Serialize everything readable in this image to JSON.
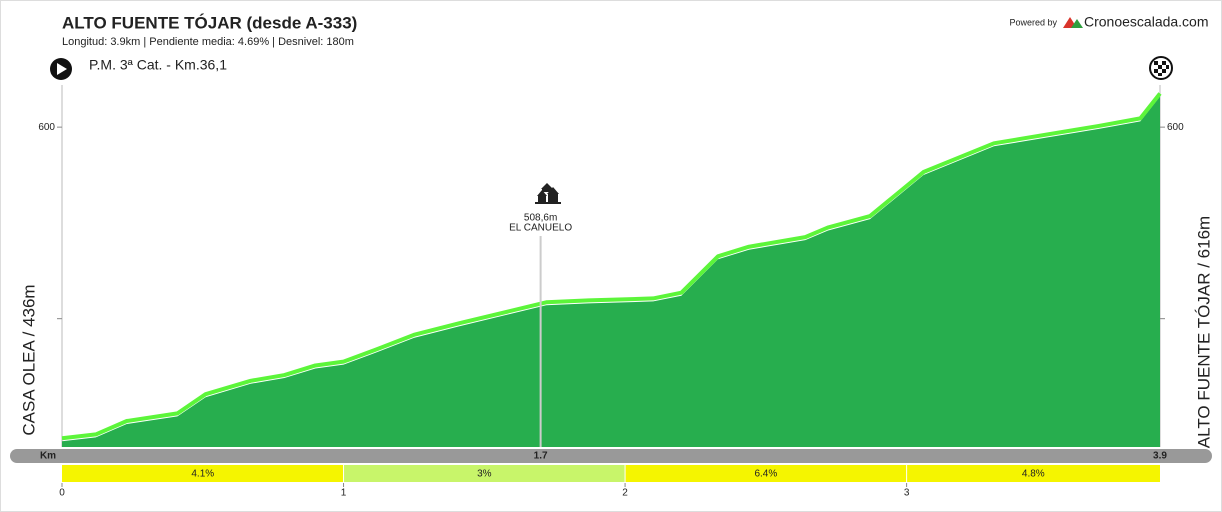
{
  "chart_data": {
    "type": "area",
    "title": "ALTO FUENTE TÓJAR  (desde A-333)",
    "subtitle": "Longitud: 3.9km | Pendiente media: 4.69% | Desnivel: 180m",
    "category_label": "P.M. 3ª Cat. - Km.36,1",
    "powered_by": "Powered by",
    "brand": "Cronoescalada.com",
    "start_label": "CASA OLEA / 436m",
    "end_label": "ALTO FUENTE TÓJAR / 616m",
    "x": [
      0,
      0.12,
      0.23,
      0.41,
      0.51,
      0.67,
      0.79,
      0.9,
      1.0,
      1.11,
      1.25,
      1.41,
      1.72,
      1.87,
      2.1,
      2.2,
      2.33,
      2.44,
      2.64,
      2.72,
      2.87,
      3.06,
      3.31,
      3.68,
      3.83,
      3.9
    ],
    "values": [
      436,
      438,
      445,
      449,
      459,
      466,
      469,
      474,
      476,
      482,
      490,
      496,
      507,
      508,
      509,
      512,
      531,
      536,
      541,
      546,
      552,
      575,
      590,
      599,
      603,
      616
    ],
    "fill_color": "#27ae4e",
    "line_color": "#5cf53a",
    "xlim": [
      0,
      3.9
    ],
    "ylim": [
      433,
      622
    ],
    "xticks": [
      0,
      1,
      2,
      3
    ],
    "yticks": [
      600
    ],
    "minor_yticks": [
      500
    ],
    "annotation": {
      "x": 1.7,
      "value": 508.6,
      "label": "508,6m",
      "name": "EL CANUELO"
    },
    "km_label": "Km",
    "km_marks": [
      1.7,
      3.9
    ],
    "segments": [
      {
        "start": 0,
        "end": 1,
        "value": 4.1,
        "label": "4.1%",
        "color": "#f5f500"
      },
      {
        "start": 1,
        "end": 2,
        "value": 3,
        "label": "3%",
        "color": "#c8f56a"
      },
      {
        "start": 2,
        "end": 3,
        "value": 6.4,
        "label": "6.4%",
        "color": "#f5f500"
      },
      {
        "start": 3,
        "end": 3.9,
        "value": 4.8,
        "label": "4.8%",
        "color": "#f5f500"
      }
    ]
  }
}
